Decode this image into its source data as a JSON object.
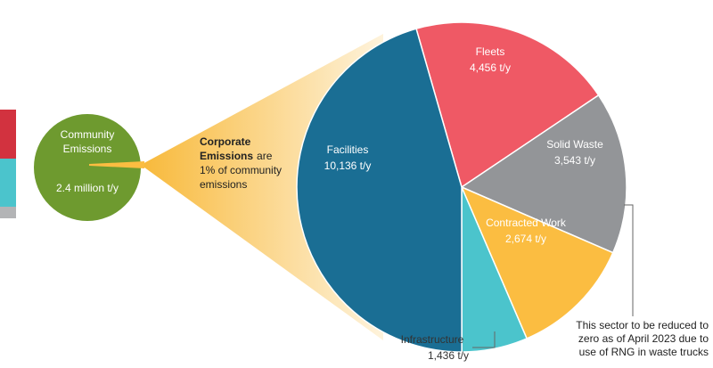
{
  "chart_data": {
    "type": "pie",
    "categories": [
      "Fleets",
      "Solid Waste",
      "Contracted Work",
      "Infrastructure",
      "Facilities"
    ],
    "values": [
      4456,
      3543,
      2674,
      1436,
      10136
    ],
    "value_labels": [
      "4,456 t/y",
      "3,543 t/y",
      "2,674 t/y",
      "1,436 t/y",
      "10,136 t/y"
    ],
    "colors": [
      "#ef5965",
      "#939598",
      "#fbbd41",
      "#4bc4cc",
      "#1a6e94"
    ],
    "community": {
      "label": [
        "Community",
        "Emissions"
      ],
      "value_label": "2.4 million t/y",
      "color": "#6e9a2f"
    },
    "corporate_note": {
      "bold": [
        "Corporate",
        "Emissions"
      ],
      "rest": [
        "are",
        "1% of community",
        "emissions"
      ]
    },
    "solid_waste_note": [
      "This sector to be reduced to",
      "zero as of April 2023 due to",
      "use of RNG in waste trucks"
    ]
  }
}
